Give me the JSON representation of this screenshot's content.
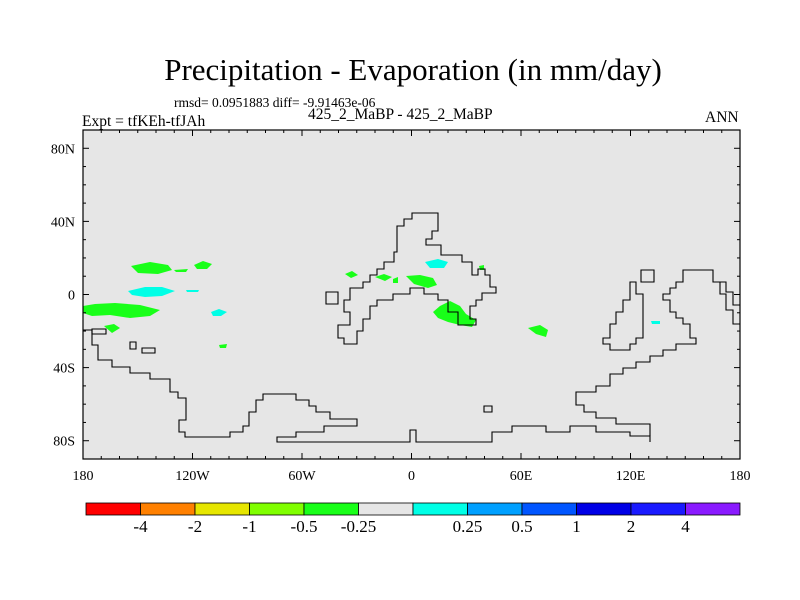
{
  "title": "Precipitation - Evaporation (in mm/day)",
  "stats": "rmsd= 0.0951883 diff= -9.91463e-06",
  "left_label": "Expt = tfKEh-tfJAh",
  "center_label": "425_2_MaBP - 425_2_MaBP",
  "right_label": "ANN",
  "map": {
    "background_color": "#e6e6e6",
    "x_ticks": [
      {
        "value": -180,
        "label": "180"
      },
      {
        "value": -120,
        "label": "120W"
      },
      {
        "value": -60,
        "label": "60W"
      },
      {
        "value": 0,
        "label": "0"
      },
      {
        "value": 60,
        "label": "60E"
      },
      {
        "value": 120,
        "label": "120E"
      },
      {
        "value": 180,
        "label": "180"
      }
    ],
    "y_ticks": [
      {
        "value": 80,
        "label": "80N"
      },
      {
        "value": 40,
        "label": "40N"
      },
      {
        "value": 0,
        "label": "0"
      },
      {
        "value": -40,
        "label": "40S"
      },
      {
        "value": -80,
        "label": "80S"
      }
    ]
  },
  "colorbar": {
    "colors": [
      "#ff0000",
      "#ff8000",
      "#e6e600",
      "#80ff00",
      "#19ff19",
      "#e6e6e6",
      "#00ffe6",
      "#00a0ff",
      "#0055ff",
      "#0000e6",
      "#1a1aff",
      "#8a1aff"
    ],
    "labels": [
      "-4",
      "-2",
      "-1",
      "-0.5",
      "-0.25",
      "0.25",
      "0.5",
      "1",
      "2",
      "4"
    ]
  }
}
